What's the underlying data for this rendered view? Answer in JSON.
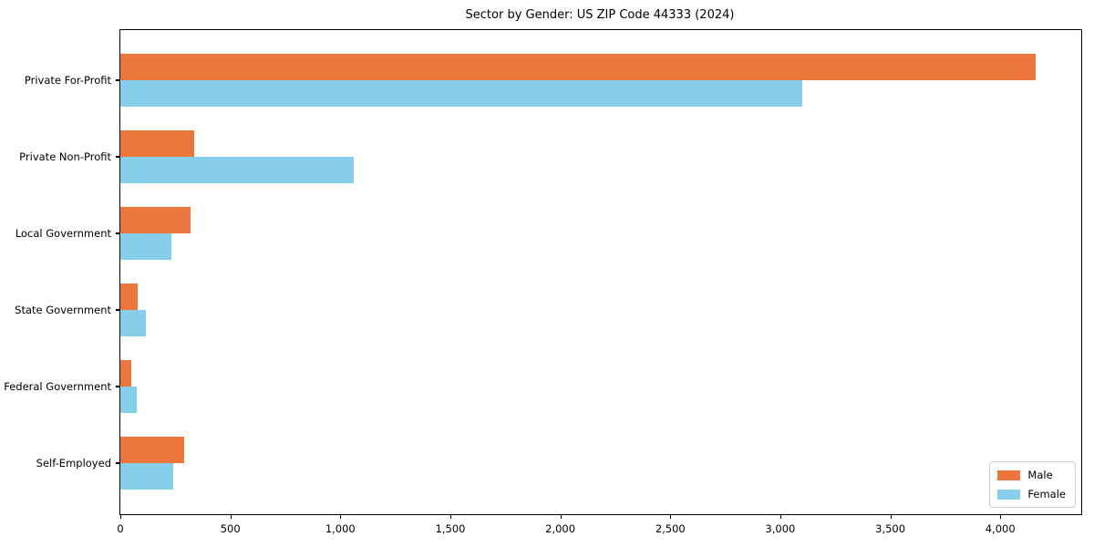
{
  "chart_data": {
    "type": "bar",
    "orientation": "horizontal",
    "title": "Sector by Gender: US ZIP Code 44333 (2024)",
    "xlabel": "",
    "ylabel": "",
    "categories": [
      "Private For-Profit",
      "Private Non-Profit",
      "Local Government",
      "State Government",
      "Federal Government",
      "Self-Employed"
    ],
    "series": [
      {
        "name": "Male",
        "color": "#EC763C",
        "values": [
          4160,
          335,
          320,
          80,
          50,
          290
        ]
      },
      {
        "name": "Female",
        "color": "#87CEEB",
        "values": [
          3100,
          1060,
          230,
          115,
          75,
          240
        ]
      }
    ],
    "xlim": [
      0,
      4368
    ],
    "xticks": [
      0,
      500,
      1000,
      1500,
      2000,
      2500,
      3000,
      3500,
      4000
    ],
    "xtick_labels": [
      "0",
      "500",
      "1,000",
      "1,500",
      "2,000",
      "2,500",
      "3,000",
      "3,500",
      "4,000"
    ],
    "legend_position": "lower right",
    "grid": false,
    "plot_border_color": "#000000",
    "background_color": "#ffffff"
  }
}
